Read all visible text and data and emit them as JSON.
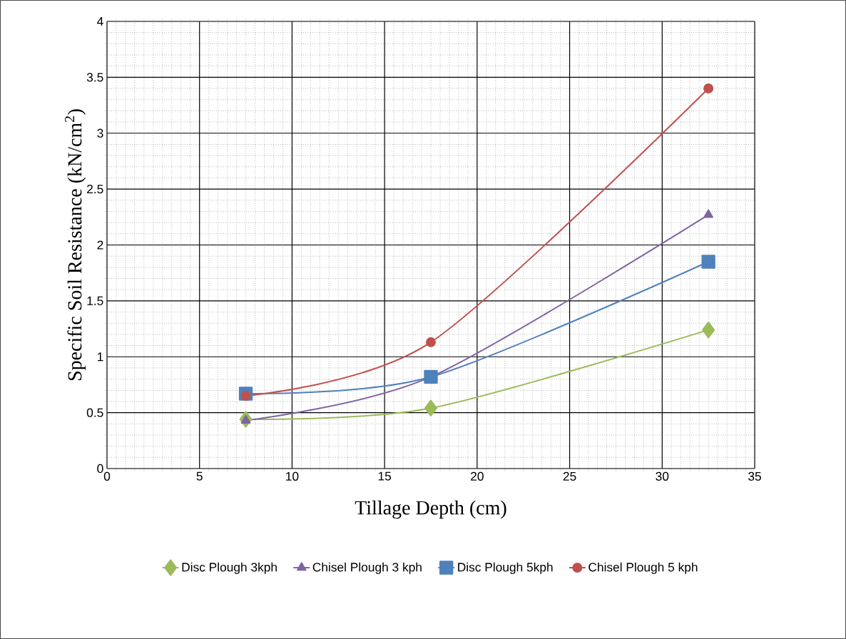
{
  "chart_data": {
    "type": "line",
    "xlabel": "Tillage Depth (cm)",
    "ylabel": "Specific Soil Resistance (kN/cm$^{2}$)",
    "x": [
      7.5,
      17.5,
      32.5
    ],
    "series": [
      {
        "name": "Disc Plough 3kph",
        "color": "#9bbb59",
        "marker": "diamond",
        "values": [
          0.44,
          0.54,
          1.24
        ]
      },
      {
        "name": "Chisel Plough 3 kph",
        "color": "#8064a2",
        "marker": "triangle",
        "values": [
          0.43,
          0.82,
          2.27
        ]
      },
      {
        "name": "Disc Plough 5kph",
        "color": "#4f81bd",
        "marker": "square",
        "values": [
          0.67,
          0.82,
          1.85
        ]
      },
      {
        "name": "Chisel Plough 5 kph",
        "color": "#c0504d",
        "marker": "circle",
        "values": [
          0.65,
          1.13,
          3.4
        ]
      }
    ],
    "xlim": [
      0,
      35
    ],
    "xticks": [
      0,
      5,
      10,
      15,
      20,
      25,
      30,
      35
    ],
    "ylim": [
      0,
      4
    ],
    "yticks": [
      0,
      {
        "value": 0.5,
        "label": "0.5"
      },
      1,
      {
        "value": 1.5,
        "label": "1.5"
      },
      2,
      {
        "value": 2.5,
        "label": "2.5"
      },
      3,
      {
        "value": 3.5,
        "label": "3.5"
      },
      4
    ],
    "grid": true,
    "legend": "bottom",
    "line_style": "solid"
  }
}
